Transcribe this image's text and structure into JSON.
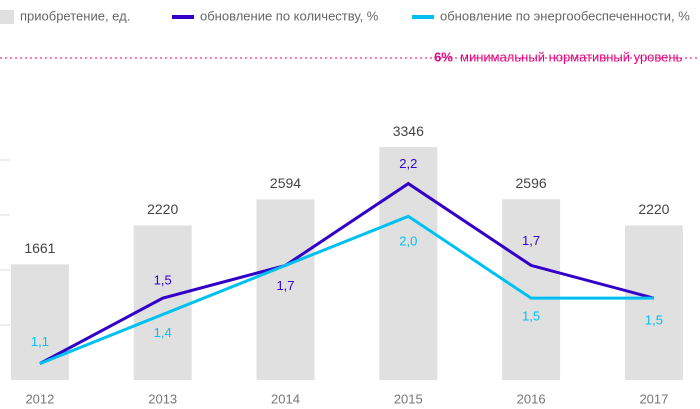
{
  "chart_data": {
    "type": "bar",
    "categories": [
      "2012",
      "2013",
      "2014",
      "2015",
      "2016",
      "2017"
    ],
    "series": [
      {
        "name": "приобретение, ед.",
        "color": "#e0e0e0",
        "values": [
          1661,
          2220,
          2594,
          3346,
          2596,
          2220
        ]
      },
      {
        "name": "обновление по количеству, %",
        "color": "#3200c8",
        "axis": "y2",
        "type": "line",
        "values": [
          1.1,
          1.5,
          1.7,
          2.2,
          1.7,
          1.5
        ],
        "value_labels": [
          null,
          "1,5",
          "1,7",
          "2,2",
          "1,7",
          null
        ]
      },
      {
        "name": "обновление по энергообеспеченности, %",
        "color": "#00c0f2",
        "axis": "y2",
        "type": "line",
        "values": [
          1.1,
          1.4,
          1.7,
          2.0,
          1.5,
          1.5
        ],
        "value_labels": [
          "1,1",
          "1,4",
          null,
          "2,0",
          "1,5",
          "1,5"
        ]
      }
    ],
    "ylim": [
      0,
      3950
    ],
    "y2lim": [
      1.0,
      2.68
    ],
    "annotations": [
      {
        "label": "6%",
        "text": "минимальный нормативный уровень",
        "color": "#e6007e"
      }
    ]
  }
}
